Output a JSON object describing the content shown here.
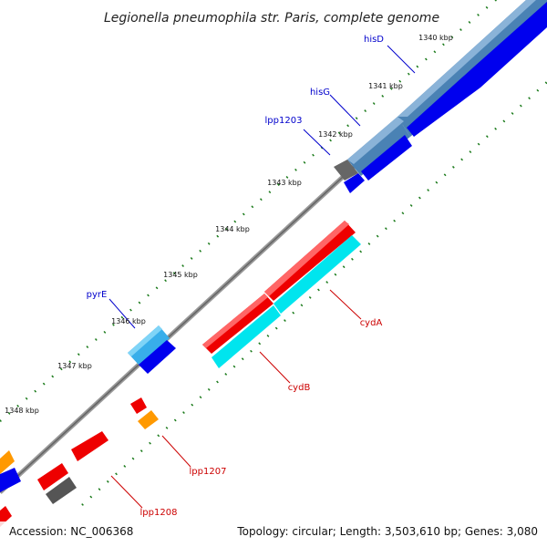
{
  "title": "Legionella pneumophila str. Paris, complete genome",
  "accession": "Accession: NC_006368",
  "topology": "Topology: circular; Length: 3,503,610 bp; Genes: 3,080",
  "ticks": [
    "1340 kbp",
    "1341 kbp",
    "1342 kbp",
    "1343 kbp",
    "1344 kbp",
    "1345 kbp",
    "1346 kbp",
    "1347 kbp",
    "1348 kbp"
  ],
  "gene_labels": {
    "hisD": "hisD",
    "hisG": "hisG",
    "lpp1203": "lpp1203",
    "pyrE": "pyrE",
    "cydA": "cydA",
    "cydB": "cydB",
    "lpp1207": "lpp1207",
    "lpp1208": "lpp1208"
  },
  "colors": {
    "forward_cds": "#0000ee",
    "forward_gene": "#4a82b4",
    "reverse_cds": "#ee0000",
    "reverse_gene_cyan": "#00e5ee",
    "trna": "#ff9900",
    "misc": "#555555",
    "backbone": "#888888",
    "tick_marks": "#1a7a1a",
    "forward_label": "#0000cc",
    "reverse_label": "#cc0000"
  }
}
